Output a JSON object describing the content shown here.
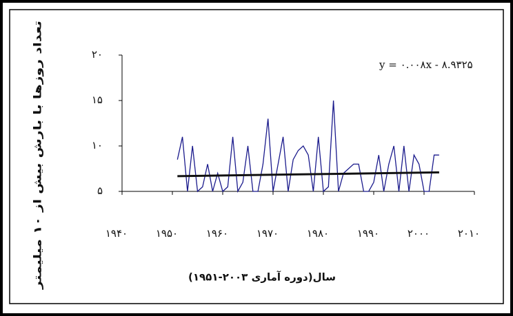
{
  "chart_data": {
    "type": "line",
    "ylabel": "تعداد روزها با بارش بیش از ۱۰ میلیمتر",
    "xlabel": "سال(دوره آماری ۲۰۰۳-۱۹۵۱)",
    "annotation": "y = ۰.۰۰۸x - ۸.۹۳۲۵",
    "x": [
      1951,
      1952,
      1953,
      1954,
      1955,
      1956,
      1957,
      1958,
      1959,
      1960,
      1961,
      1962,
      1963,
      1964,
      1965,
      1966,
      1967,
      1968,
      1969,
      1970,
      1971,
      1972,
      1973,
      1974,
      1975,
      1976,
      1977,
      1978,
      1979,
      1980,
      1981,
      1982,
      1983,
      1984,
      1985,
      1986,
      1987,
      1988,
      1989,
      1990,
      1991,
      1992,
      1993,
      1994,
      1995,
      1996,
      1997,
      1998,
      1999,
      2000,
      2001,
      2002,
      2003
    ],
    "series": [
      {
        "color": "#1a1a8c",
        "values": [
          8.5,
          11,
          5,
          10,
          5,
          5.5,
          8,
          5,
          7,
          5,
          5.5,
          11,
          5,
          6,
          10,
          5,
          5,
          8,
          13,
          5,
          8,
          11,
          5,
          8.5,
          9.5,
          10,
          9,
          5,
          11,
          5,
          5.5,
          15,
          5,
          7,
          7.5,
          8,
          8,
          5,
          5,
          6,
          9,
          5,
          8,
          10,
          5,
          10,
          5,
          9,
          8,
          5,
          5,
          9,
          9
        ]
      },
      {
        "color": "#111111",
        "x": [
          1951,
          2003
        ],
        "values": [
          6.68,
          7.09
        ]
      }
    ],
    "xlim": [
      1940,
      2010
    ],
    "ylim": [
      5,
      20
    ],
    "xticks": [
      {
        "value": 1940,
        "label": "۱۹۴۰"
      },
      {
        "value": 1950,
        "label": "۱۹۵۰"
      },
      {
        "value": 1960,
        "label": "۱۹۶۰"
      },
      {
        "value": 1970,
        "label": "۱۹۷۰"
      },
      {
        "value": 1980,
        "label": "۱۹۸۰"
      },
      {
        "value": 1990,
        "label": "۱۹۹۰"
      },
      {
        "value": 2000,
        "label": "۲۰۰۰"
      },
      {
        "value": 2010,
        "label": "۲۰۱۰"
      }
    ],
    "yticks": [
      {
        "value": 5,
        "label": "۵"
      },
      {
        "value": 10,
        "label": "۱۰"
      },
      {
        "value": 15,
        "label": "۱۵"
      },
      {
        "value": 20,
        "label": "۲۰"
      }
    ]
  }
}
